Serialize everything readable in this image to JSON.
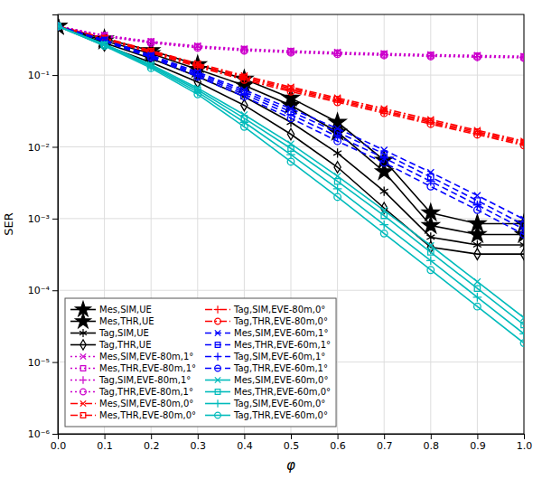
{
  "chart_data": {
    "type": "line",
    "xlabel": "φ",
    "ylabel": "SER",
    "log": "y",
    "grid": true,
    "legend": "lower left",
    "x": [
      0.0,
      0.1,
      0.2,
      0.3,
      0.4,
      0.5,
      0.6,
      0.7,
      0.8,
      0.9,
      1.0
    ],
    "xlim": [
      0,
      1.0
    ],
    "xticks": [
      {
        "value": 0,
        "label": "0.0"
      },
      0.1,
      0.2,
      0.3,
      0.4,
      0.5,
      0.6,
      0.7,
      0.8,
      0.9,
      {
        "value": 1.0,
        "label": "1.0"
      }
    ],
    "ylim": [
      1e-06,
      0.7
    ],
    "yticks": [
      {
        "value": 1e-06,
        "label": "10⁻⁶"
      },
      {
        "value": 1e-05,
        "label": "10⁻⁵"
      },
      {
        "value": 0.0001,
        "label": "10⁻⁴"
      },
      {
        "value": 0.001,
        "label": "10⁻³"
      },
      {
        "value": 0.01,
        "label": "10⁻²"
      },
      {
        "value": 0.1,
        "label": "10⁻¹"
      }
    ],
    "series": [
      {
        "name": "Mes,SIM,UE",
        "color": "#000000",
        "line_style": "solid",
        "marker": "star",
        "values": [
          0.48,
          0.32,
          0.22,
          0.14,
          0.088,
          0.048,
          0.022,
          0.0065,
          0.0012,
          0.00085,
          0.00085
        ]
      },
      {
        "name": "Mes,THR,UE",
        "color": "#000000",
        "line_style": "solid",
        "marker": "star",
        "values": [
          0.48,
          0.3,
          0.2,
          0.12,
          0.072,
          0.038,
          0.016,
          0.0045,
          0.0008,
          0.0006,
          0.0006
        ]
      },
      {
        "name": "Tag,SIM,UE",
        "color": "#000000",
        "line_style": "solid",
        "marker": "asterisk",
        "values": [
          0.48,
          0.28,
          0.17,
          0.095,
          0.05,
          0.022,
          0.0082,
          0.0024,
          0.00055,
          0.00043,
          0.00043
        ]
      },
      {
        "name": "Tag,THR,UE",
        "color": "#000000",
        "line_style": "solid",
        "marker": "diamond",
        "values": [
          0.48,
          0.26,
          0.15,
          0.08,
          0.038,
          0.015,
          0.0052,
          0.0014,
          0.0004,
          0.00032,
          0.00032
        ]
      },
      {
        "name": "Mes,SIM,EVE-80m,1°",
        "color": "#CC00CC",
        "line_style": "dotted",
        "marker": "x",
        "values": [
          0.48,
          0.36,
          0.295,
          0.255,
          0.232,
          0.218,
          0.208,
          0.2,
          0.193,
          0.188,
          0.183
        ]
      },
      {
        "name": "Mes,THR,EVE-80m,1°",
        "color": "#CC00CC",
        "line_style": "dotted",
        "marker": "square",
        "values": [
          0.48,
          0.355,
          0.29,
          0.25,
          0.228,
          0.214,
          0.204,
          0.196,
          0.19,
          0.185,
          0.18
        ]
      },
      {
        "name": "Tag,SIM,EVE-80m,1°",
        "color": "#CC00CC",
        "line_style": "dotted",
        "marker": "plus",
        "values": [
          0.48,
          0.35,
          0.285,
          0.245,
          0.223,
          0.21,
          0.2,
          0.192,
          0.186,
          0.181,
          0.177
        ]
      },
      {
        "name": "Tag,THR,EVE-80m,1°",
        "color": "#CC00CC",
        "line_style": "dotted",
        "marker": "circle",
        "values": [
          0.48,
          0.345,
          0.28,
          0.24,
          0.219,
          0.206,
          0.196,
          0.189,
          0.183,
          0.178,
          0.174
        ]
      },
      {
        "name": "Mes,SIM,EVE-80m,0°",
        "color": "#FF0000",
        "line_style": "dashdot",
        "marker": "x",
        "values": [
          0.48,
          0.33,
          0.22,
          0.145,
          0.098,
          0.068,
          0.048,
          0.034,
          0.024,
          0.017,
          0.012
        ]
      },
      {
        "name": "Mes,THR,EVE-80m,0°",
        "color": "#FF0000",
        "line_style": "dashdot",
        "marker": "square",
        "values": [
          0.48,
          0.325,
          0.215,
          0.14,
          0.094,
          0.065,
          0.046,
          0.032,
          0.0228,
          0.0162,
          0.0115
        ]
      },
      {
        "name": "Tag,SIM,EVE-80m,0°",
        "color": "#FF0000",
        "line_style": "dashdot",
        "marker": "plus",
        "values": [
          0.48,
          0.32,
          0.21,
          0.135,
          0.09,
          0.062,
          0.044,
          0.031,
          0.0218,
          0.0155,
          0.011
        ]
      },
      {
        "name": "Tag,THR,EVE-80m,0°",
        "color": "#FF0000",
        "line_style": "dashdot",
        "marker": "circle",
        "values": [
          0.48,
          0.315,
          0.205,
          0.13,
          0.086,
          0.059,
          0.042,
          0.0295,
          0.0208,
          0.0148,
          0.0105
        ]
      },
      {
        "name": "Mes,SIM,EVE-60m,1°",
        "color": "#0000FF",
        "line_style": "dashed",
        "marker": "x",
        "values": [
          0.48,
          0.31,
          0.19,
          0.11,
          0.062,
          0.034,
          0.018,
          0.009,
          0.0044,
          0.0021,
          0.00098
        ]
      },
      {
        "name": "Mes,THR,EVE-60m,1°",
        "color": "#0000FF",
        "line_style": "dashed",
        "marker": "square",
        "values": [
          0.48,
          0.305,
          0.185,
          0.105,
          0.058,
          0.031,
          0.016,
          0.008,
          0.0038,
          0.00178,
          0.00082
        ]
      },
      {
        "name": "Tag,SIM,EVE-60m,1°",
        "color": "#0000FF",
        "line_style": "dashed",
        "marker": "plus",
        "values": [
          0.48,
          0.3,
          0.18,
          0.1,
          0.054,
          0.028,
          0.014,
          0.007,
          0.0033,
          0.00155,
          0.00071
        ]
      },
      {
        "name": "Tag,THR,EVE-60m,1°",
        "color": "#0000FF",
        "line_style": "dashed",
        "marker": "circle",
        "values": [
          0.48,
          0.295,
          0.175,
          0.095,
          0.05,
          0.025,
          0.012,
          0.006,
          0.0028,
          0.00132,
          0.0006
        ]
      },
      {
        "name": "Mes,SIM,EVE-60m,0°",
        "color": "#00BBBB",
        "line_style": "solid",
        "marker": "x",
        "values": [
          0.48,
          0.27,
          0.14,
          0.066,
          0.028,
          0.011,
          0.0039,
          0.0013,
          0.00042,
          0.000132,
          4.15e-05
        ]
      },
      {
        "name": "Mes,THR,EVE-60m,0°",
        "color": "#00BBBB",
        "line_style": "solid",
        "marker": "square",
        "values": [
          0.48,
          0.265,
          0.135,
          0.062,
          0.025,
          0.0095,
          0.0033,
          0.0011,
          0.00034,
          0.000106,
          3.3e-05
        ]
      },
      {
        "name": "Tag,SIM,EVE-60m,0°",
        "color": "#00BBBB",
        "line_style": "solid",
        "marker": "plus",
        "values": [
          0.48,
          0.26,
          0.13,
          0.058,
          0.022,
          0.0078,
          0.0026,
          0.00082,
          0.00026,
          8e-05,
          2.48e-05
        ]
      },
      {
        "name": "Tag,THR,EVE-60m,0°",
        "color": "#00BBBB",
        "line_style": "solid",
        "marker": "circle",
        "values": [
          0.48,
          0.255,
          0.125,
          0.054,
          0.019,
          0.0062,
          0.002,
          0.00062,
          0.000192,
          5.95e-05,
          1.84e-05
        ]
      }
    ]
  }
}
